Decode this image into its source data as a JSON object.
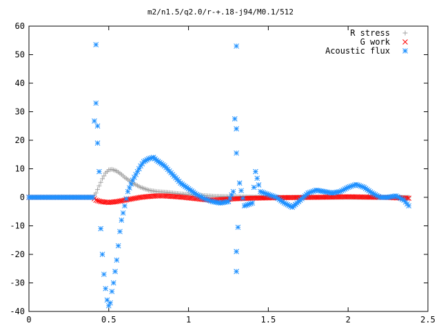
{
  "chart_data": {
    "type": "scatter",
    "title": "m2/n1.5/q2.0/r-+.18-j94/M0.1/512",
    "xlabel": "",
    "ylabel": "",
    "xlim": [
      0,
      2.5
    ],
    "ylim": [
      -40,
      60
    ],
    "x_ticks": [
      0,
      0.5,
      1,
      1.5,
      2,
      2.5
    ],
    "x_tick_labels": [
      "0",
      "0.5",
      "1",
      "1.5",
      "2",
      "2.5"
    ],
    "y_ticks": [
      -40,
      -30,
      -20,
      -10,
      0,
      10,
      20,
      30,
      40,
      50,
      60
    ],
    "y_tick_labels": [
      "-40",
      "-30",
      "-20",
      "-10",
      "0",
      "10",
      "20",
      "30",
      "40",
      "50",
      "60"
    ],
    "grid": false,
    "legend_position": "top-right",
    "series": [
      {
        "name": "R stress",
        "marker": "plus",
        "color": "#a0a0a0",
        "points": [
          [
            0.0,
            0
          ],
          [
            0.4,
            0
          ],
          [
            0.42,
            1.5
          ],
          [
            0.44,
            4
          ],
          [
            0.46,
            6.5
          ],
          [
            0.48,
            8.5
          ],
          [
            0.5,
            9.6
          ],
          [
            0.52,
            9.8
          ],
          [
            0.55,
            9.2
          ],
          [
            0.58,
            8.0
          ],
          [
            0.6,
            7.0
          ],
          [
            0.65,
            5.0
          ],
          [
            0.7,
            3.5
          ],
          [
            0.75,
            2.5
          ],
          [
            0.8,
            2.0
          ],
          [
            0.85,
            1.8
          ],
          [
            0.9,
            1.5
          ],
          [
            0.95,
            1.2
          ],
          [
            1.0,
            1.0
          ],
          [
            1.05,
            0.8
          ],
          [
            1.1,
            0.6
          ],
          [
            1.15,
            0.4
          ],
          [
            1.2,
            0.3
          ],
          [
            1.3,
            0.2
          ],
          [
            1.4,
            0.1
          ],
          [
            1.5,
            0
          ],
          [
            2.0,
            0
          ],
          [
            2.38,
            0
          ]
        ]
      },
      {
        "name": "G work",
        "marker": "cross",
        "color": "#ff0000",
        "points": [
          [
            0.0,
            0
          ],
          [
            0.4,
            0
          ],
          [
            0.42,
            -1.0
          ],
          [
            0.45,
            -1.5
          ],
          [
            0.5,
            -1.8
          ],
          [
            0.55,
            -1.5
          ],
          [
            0.6,
            -1.0
          ],
          [
            0.65,
            -0.5
          ],
          [
            0.7,
            0
          ],
          [
            0.75,
            0.3
          ],
          [
            0.8,
            0.5
          ],
          [
            0.85,
            0.5
          ],
          [
            0.9,
            0.3
          ],
          [
            0.95,
            0.1
          ],
          [
            1.0,
            -0.2
          ],
          [
            1.05,
            -0.5
          ],
          [
            1.1,
            -0.8
          ],
          [
            1.15,
            -1.0
          ],
          [
            1.2,
            -0.8
          ],
          [
            1.3,
            -0.5
          ],
          [
            1.4,
            -0.3
          ],
          [
            1.5,
            -0.2
          ],
          [
            1.6,
            -0.1
          ],
          [
            1.8,
            0
          ],
          [
            2.0,
            0.2
          ],
          [
            2.2,
            0
          ],
          [
            2.38,
            -0.3
          ]
        ]
      },
      {
        "name": "Acoustic flux",
        "marker": "star",
        "color": "#1e90ff",
        "points": [
          [
            0.0,
            0
          ],
          [
            0.4,
            0
          ],
          [
            0.42,
            53.5
          ],
          [
            0.42,
            33
          ],
          [
            0.43,
            25
          ],
          [
            0.43,
            19
          ],
          [
            0.44,
            9
          ],
          [
            0.45,
            -11
          ],
          [
            0.46,
            -20
          ],
          [
            0.47,
            -27
          ],
          [
            0.48,
            -32
          ],
          [
            0.49,
            -36
          ],
          [
            0.5,
            -38
          ],
          [
            0.51,
            -37
          ],
          [
            0.52,
            -33
          ],
          [
            0.53,
            -30
          ],
          [
            0.54,
            -26
          ],
          [
            0.55,
            -22
          ],
          [
            0.56,
            -17
          ],
          [
            0.57,
            -12
          ],
          [
            0.58,
            -8
          ],
          [
            0.6,
            -3
          ],
          [
            0.62,
            2
          ],
          [
            0.65,
            6
          ],
          [
            0.68,
            9
          ],
          [
            0.7,
            11
          ],
          [
            0.72,
            12.5
          ],
          [
            0.75,
            13.5
          ],
          [
            0.78,
            14
          ],
          [
            0.8,
            13
          ],
          [
            0.85,
            11
          ],
          [
            0.9,
            8
          ],
          [
            0.95,
            5
          ],
          [
            1.0,
            3
          ],
          [
            1.05,
            1
          ],
          [
            1.1,
            -0.5
          ],
          [
            1.15,
            -1.5
          ],
          [
            1.2,
            -2
          ],
          [
            1.25,
            -1.5
          ],
          [
            1.28,
            2
          ],
          [
            1.3,
            53
          ],
          [
            1.3,
            24
          ],
          [
            1.3,
            15.5
          ],
          [
            1.3,
            -19
          ],
          [
            1.3,
            -26
          ],
          [
            1.32,
            5
          ],
          [
            1.35,
            -3
          ],
          [
            1.4,
            -2
          ],
          [
            1.42,
            9
          ],
          [
            1.45,
            2
          ],
          [
            1.5,
            1
          ],
          [
            1.55,
            0
          ],
          [
            1.6,
            -2
          ],
          [
            1.65,
            -3.5
          ],
          [
            1.7,
            -1
          ],
          [
            1.75,
            1.5
          ],
          [
            1.8,
            2.5
          ],
          [
            1.85,
            2
          ],
          [
            1.9,
            1.5
          ],
          [
            1.95,
            2
          ],
          [
            2.0,
            3.5
          ],
          [
            2.05,
            4.5
          ],
          [
            2.1,
            3.5
          ],
          [
            2.15,
            1.5
          ],
          [
            2.2,
            0
          ],
          [
            2.25,
            0
          ],
          [
            2.3,
            0.5
          ],
          [
            2.35,
            -1
          ],
          [
            2.38,
            -3
          ]
        ]
      }
    ]
  }
}
